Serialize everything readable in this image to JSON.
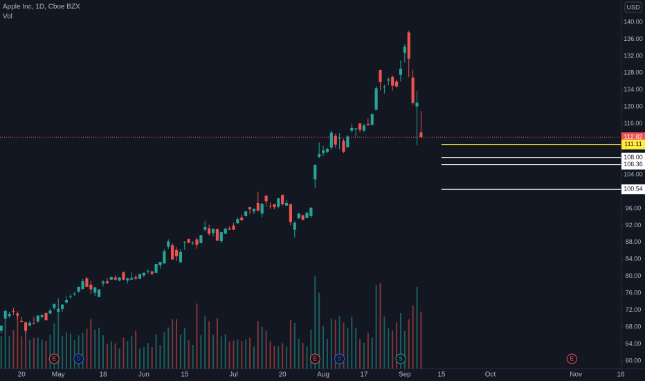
{
  "chart_data": {
    "type": "candlestick",
    "title": "Apple Inc, 1D, Cboe BZX",
    "volume_label": "Vol",
    "currency": "USD",
    "up_color": "#26a69a",
    "down_color": "#ef5350",
    "dates": [
      "Apr 13",
      "Apr 14",
      "Apr 15",
      "Apr 16",
      "Apr 17",
      "Apr 20",
      "Apr 21",
      "Apr 22",
      "Apr 23",
      "Apr 24",
      "Apr 27",
      "Apr 28",
      "Apr 29",
      "Apr 30",
      "May 1",
      "May 4",
      "May 5",
      "May 6",
      "May 7",
      "May 8",
      "May 11",
      "May 12",
      "May 13",
      "May 14",
      "May 15",
      "May 18",
      "May 19",
      "May 20",
      "May 21",
      "May 22",
      "May 26",
      "May 27",
      "May 28",
      "May 29",
      "Jun 1",
      "Jun 2",
      "Jun 3",
      "Jun 4",
      "Jun 5",
      "Jun 8",
      "Jun 9",
      "Jun 10",
      "Jun 11",
      "Jun 12",
      "Jun 15",
      "Jun 16",
      "Jun 17",
      "Jun 18",
      "Jun 19",
      "Jun 22",
      "Jun 23",
      "Jun 24",
      "Jun 25",
      "Jun 26",
      "Jun 29",
      "Jun 30",
      "Jul 1",
      "Jul 2",
      "Jul 6",
      "Jul 7",
      "Jul 8",
      "Jul 9",
      "Jul 10",
      "Jul 13",
      "Jul 14",
      "Jul 15",
      "Jul 16",
      "Jul 17",
      "Jul 20",
      "Jul 21",
      "Jul 22",
      "Jul 23",
      "Jul 24",
      "Jul 27",
      "Jul 28",
      "Jul 29",
      "Jul 30",
      "Jul 31",
      "Aug 3",
      "Aug 4",
      "Aug 5",
      "Aug 6",
      "Aug 7",
      "Aug 10",
      "Aug 11",
      "Aug 12",
      "Aug 13",
      "Aug 14",
      "Aug 17",
      "Aug 18",
      "Aug 19",
      "Aug 20",
      "Aug 21",
      "Aug 24",
      "Aug 25",
      "Aug 26",
      "Aug 27",
      "Aug 28",
      "Aug 31",
      "Sep 1",
      "Sep 2",
      "Sep 3",
      "Sep 4",
      "Sep 8"
    ],
    "open": [
      67.1,
      70.0,
      70.6,
      71.8,
      71.2,
      69.5,
      69.1,
      68.4,
      68.9,
      69.3,
      70.4,
      71.3,
      71.2,
      72.5,
      71.6,
      72.3,
      73.8,
      75.1,
      75.8,
      76.4,
      77.0,
      79.5,
      78.0,
      76.1,
      75.1,
      78.3,
      78.8,
      79.2,
      79.7,
      79.0,
      80.9,
      79.0,
      79.2,
      79.8,
      79.4,
      80.2,
      81.2,
      81.1,
      80.8,
      82.6,
      83.0,
      86.98,
      87.3,
      86.2,
      83.3,
      87.9,
      88.8,
      87.9,
      88.7,
      87.8,
      91.0,
      91.3,
      90.2,
      91.1,
      88.3,
      90.0,
      91.3,
      91.96,
      92.5,
      93.85,
      94.2,
      96.3,
      95.3,
      97.3,
      94.8,
      98.99,
      96.6,
      96.99,
      96.4,
      99.2,
      96.7,
      96.99,
      90.99,
      93.7,
      94.4,
      93.75,
      94.2,
      102.9,
      108.2,
      109.1,
      109.4,
      110.4,
      113.2,
      112.6,
      111.97,
      110.5,
      114.4,
      114.8,
      116.1,
      114.4,
      115.98,
      115.75,
      119.3,
      128.7,
      124.7,
      126.2,
      127.1,
      126.0,
      127.6,
      132.8,
      137.6,
      126.9,
      120.1,
      113.95
    ],
    "high": [
      68.4,
      72.1,
      71.6,
      72.5,
      71.7,
      70.4,
      69.3,
      69.5,
      70.4,
      70.8,
      71.1,
      71.5,
      72.4,
      73.6,
      74.8,
      73.4,
      75.2,
      75.8,
      76.3,
      77.6,
      79.3,
      79.9,
      78.99,
      77.4,
      76.98,
      79.1,
      79.6,
      79.9,
      80.2,
      79.8,
      81.1,
      79.7,
      80.9,
      80.3,
      80.6,
      80.9,
      81.6,
      81.4,
      82.9,
      83.4,
      86.4,
      88.7,
      87.8,
      86.9,
      86.4,
      88.3,
      88.85,
      88.3,
      89.1,
      89.8,
      93.1,
      92.2,
      91.25,
      91.3,
      90.5,
      91.5,
      91.8,
      92.6,
      93.9,
      94.65,
      95.4,
      96.3,
      95.98,
      99.96,
      97.3,
      99.2,
      97.4,
      97.15,
      98.5,
      99.25,
      97.97,
      97.1,
      92.97,
      94.9,
      94.5,
      95.2,
      96.3,
      106.4,
      111.6,
      110.8,
      110.4,
      114.4,
      113.7,
      113.8,
      112.5,
      113.3,
      116.0,
      115.0,
      116.1,
      116.0,
      117.2,
      118.4,
      124.9,
      128.8,
      125.2,
      126.99,
      127.5,
      126.4,
      131.0,
      134.8,
      137.98,
      128.8,
      123.7,
      118.99
    ],
    "low": [
      66.5,
      69.5,
      70.2,
      70.8,
      69.9,
      69.1,
      66.4,
      68.1,
      68.6,
      69.0,
      69.99,
      69.6,
      71.0,
      72.1,
      71.5,
      71.6,
      73.6,
      74.7,
      75.4,
      76.1,
      76.8,
      77.6,
      75.8,
      75.4,
      75.05,
      77.6,
      78.3,
      79.1,
      78.97,
      78.8,
      79.1,
      78.3,
      79.1,
      79.1,
      79.3,
      79.8,
      80.6,
      80.2,
      80.8,
      81.8,
      83.0,
      86.5,
      83.9,
      83.6,
      83.1,
      86.2,
      87.8,
      87.3,
      86.5,
      87.8,
      90.6,
      89.6,
      89.4,
      88.3,
      87.8,
      90.0,
      90.98,
      90.9,
      92.5,
      93.1,
      94.1,
      94.7,
      94.7,
      95.3,
      93.9,
      96.5,
      95.9,
      95.8,
      96.1,
      96.7,
      96.6,
      92.0,
      89.1,
      93.5,
      93.2,
      93.7,
      93.8,
      100.8,
      107.9,
      108.4,
      109.0,
      109.8,
      110.3,
      110.0,
      109.1,
      110.3,
      113.96,
      113.0,
      113.96,
      114.0,
      115.6,
      115.7,
      119.2,
      123.9,
      123.1,
      125.1,
      123.8,
      124.6,
      126.0,
      130.5,
      127.0,
      120.5,
      110.9,
      112.7
    ],
    "close": [
      68.3,
      71.8,
      71.1,
      71.7,
      70.7,
      69.2,
      67.1,
      69.0,
      68.8,
      70.7,
      70.8,
      69.6,
      71.9,
      73.4,
      72.3,
      73.3,
      74.4,
      75.2,
      75.9,
      77.5,
      78.8,
      77.5,
      76.9,
      77.4,
      76.9,
      78.7,
      78.3,
      79.8,
      79.2,
      79.7,
      79.2,
      79.5,
      79.6,
      79.5,
      80.5,
      80.8,
      81.3,
      80.6,
      82.9,
      83.4,
      85.9,
      88.2,
      83.97,
      84.7,
      85.7,
      88.0,
      87.9,
      87.9,
      87.4,
      89.7,
      91.6,
      90.0,
      91.2,
      88.4,
      90.4,
      91.2,
      91.0,
      91.0,
      93.5,
      93.2,
      95.3,
      95.8,
      95.9,
      95.5,
      97.1,
      97.7,
      96.5,
      96.3,
      98.4,
      97.0,
      97.3,
      92.8,
      92.6,
      94.8,
      93.3,
      95.0,
      96.2,
      106.3,
      108.9,
      109.7,
      110.1,
      113.9,
      111.1,
      112.7,
      109.4,
      113.0,
      115.0,
      114.9,
      114.6,
      115.6,
      115.7,
      118.3,
      124.4,
      125.9,
      124.8,
      126.5,
      125.0,
      124.8,
      129.0,
      134.2,
      131.4,
      120.9,
      120.96,
      112.82
    ],
    "volume": [
      131,
      194,
      131,
      157,
      215,
      130,
      180,
      117,
      124,
      126,
      117,
      112,
      137,
      183,
      240,
      133,
      147,
      142,
      115,
      134,
      145,
      162,
      200,
      158,
      166,
      135,
      101,
      111,
      102,
      81,
      125,
      112,
      133,
      153,
      81,
      87,
      104,
      87,
      138,
      95,
      147,
      167,
      201,
      200,
      138,
      165,
      114,
      96,
      264,
      135,
      212,
      192,
      137,
      205,
      130,
      140,
      110,
      114,
      118,
      112,
      117,
      125,
      90,
      191,
      170,
      153,
      110,
      93,
      90,
      103,
      89,
      197,
      185,
      121,
      104,
      90,
      158,
      374,
      308,
      173,
      121,
      202,
      198,
      212,
      187,
      165,
      210,
      165,
      119,
      105,
      145,
      126,
      338,
      346,
      211,
      163,
      155,
      188,
      225,
      152,
      200,
      257,
      332,
      231
    ],
    "xlim": [
      -0.3,
      152
    ],
    "xticks": [
      {
        "value": 5,
        "label": "20"
      },
      {
        "value": 14,
        "label": "May"
      },
      {
        "value": 25,
        "label": "18"
      },
      {
        "value": 35,
        "label": "Jun"
      },
      {
        "value": 45,
        "label": "15"
      },
      {
        "value": 57,
        "label": "Jul"
      },
      {
        "value": 69,
        "label": "20"
      },
      {
        "value": 79,
        "label": "Aug"
      },
      {
        "value": 89,
        "label": "17"
      },
      {
        "value": 99,
        "label": "Sep"
      },
      {
        "value": 108,
        "label": "15"
      },
      {
        "value": 120,
        "label": "Oct"
      },
      {
        "value": 141,
        "label": "Nov"
      },
      {
        "value": 152,
        "label": "16"
      }
    ],
    "ylim": [
      58.2,
      145.24
    ],
    "yticks": [
      {
        "value": 60,
        "label": "60.00"
      },
      {
        "value": 64,
        "label": "64.00"
      },
      {
        "value": 68,
        "label": "68.00"
      },
      {
        "value": 72,
        "label": "72.00"
      },
      {
        "value": 76,
        "label": "76.00"
      },
      {
        "value": 80,
        "label": "80.00"
      },
      {
        "value": 84,
        "label": "84.00"
      },
      {
        "value": 88,
        "label": "88.00"
      },
      {
        "value": 92,
        "label": "92.00"
      },
      {
        "value": 96,
        "label": "96.00"
      },
      {
        "value": 104,
        "label": "104.00"
      },
      {
        "value": 116,
        "label": "116.00"
      },
      {
        "value": 120,
        "label": "120.00"
      },
      {
        "value": 124,
        "label": "124.00"
      },
      {
        "value": 128,
        "label": "128.00"
      },
      {
        "value": 132,
        "label": "132.00"
      },
      {
        "value": 136,
        "label": "136.00"
      },
      {
        "value": 140,
        "label": "140.00"
      }
    ],
    "last_price": {
      "value": 112.82,
      "label": "112.82",
      "color": "#ef5350"
    },
    "levels": [
      {
        "value": 111.11,
        "label": "111.11",
        "color": "#ffeb3b",
        "start": 108
      },
      {
        "value": 108.0,
        "label": "108.00",
        "color": "#ffffff",
        "start": 108
      },
      {
        "value": 106.36,
        "label": "106.36",
        "color": "#ffffff",
        "start": 108
      },
      {
        "value": 100.54,
        "label": "100.54",
        "color": "#ffffff",
        "start": 108
      }
    ],
    "events": [
      {
        "label": "E",
        "x": 13,
        "color": "#ef5350"
      },
      {
        "label": "D",
        "x": 19,
        "color": "#2962ff"
      },
      {
        "label": "E",
        "x": 77,
        "color": "#ef5350"
      },
      {
        "label": "D",
        "x": 83,
        "color": "#2962ff"
      },
      {
        "label": "S",
        "x": 98,
        "color": "#26a69a"
      },
      {
        "label": "E",
        "x": 140,
        "color": "#ef5350"
      }
    ]
  }
}
